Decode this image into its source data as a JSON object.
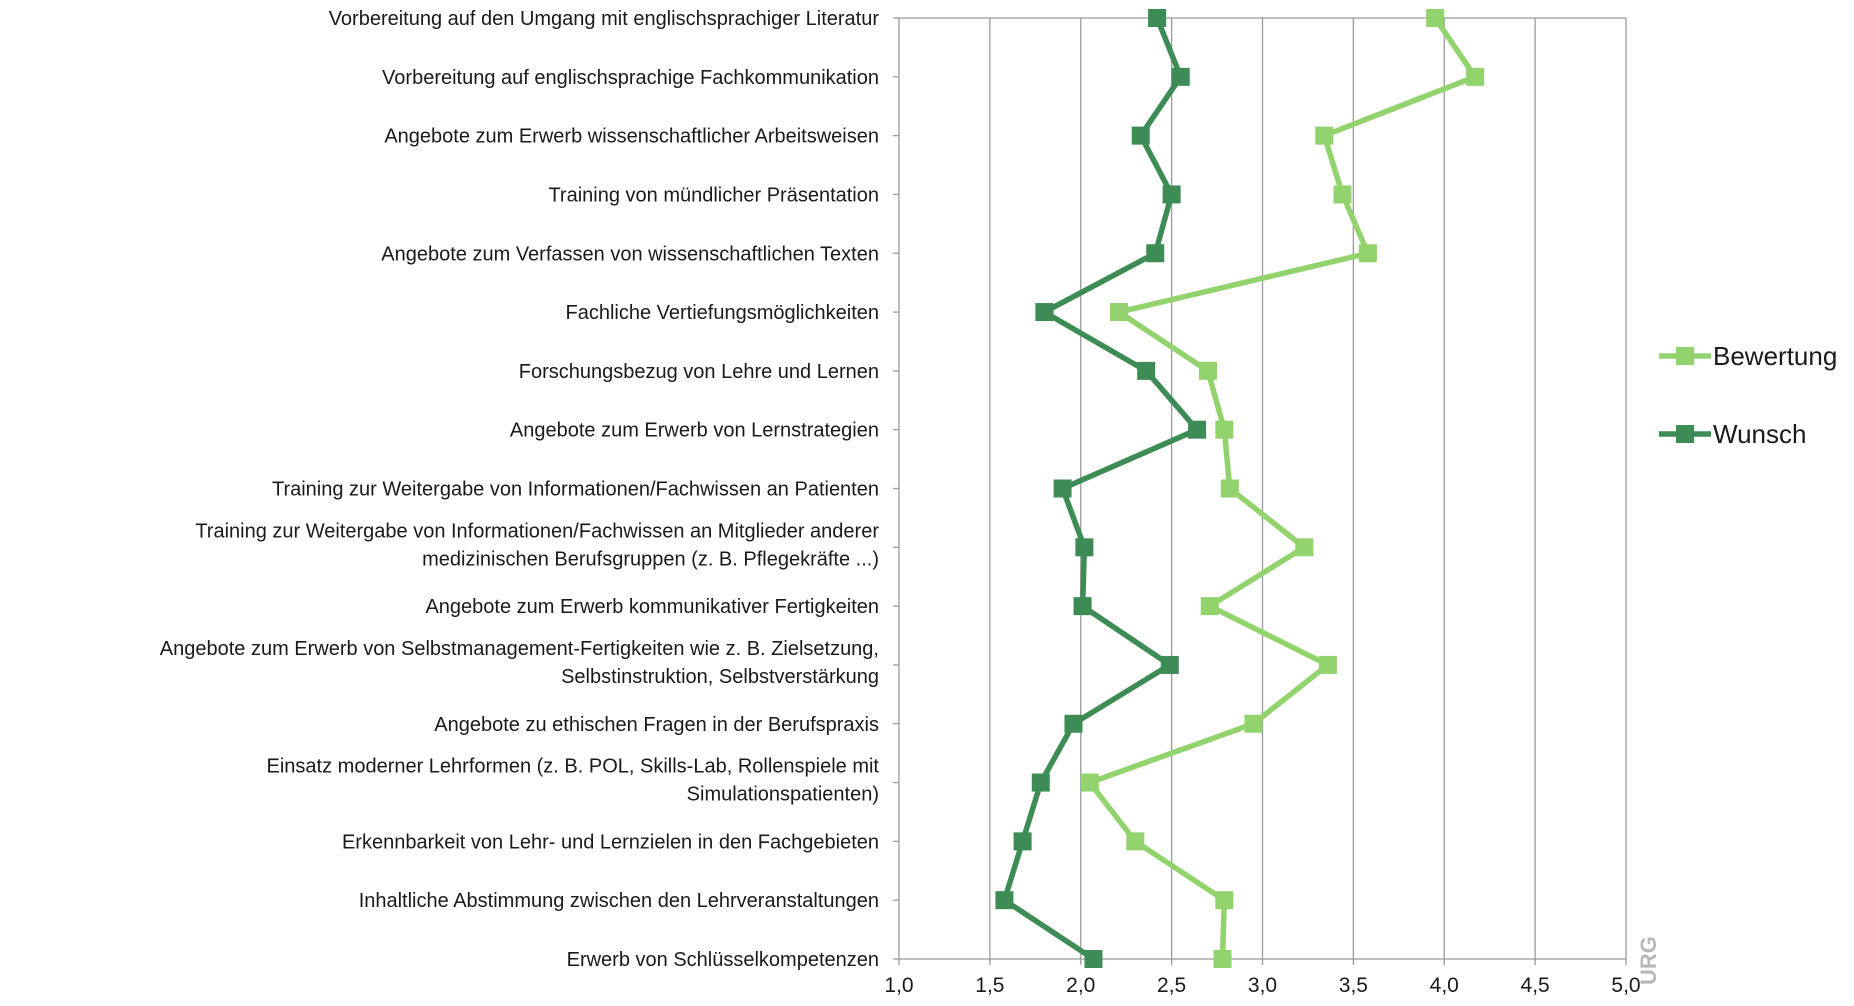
{
  "chart_data": {
    "type": "line",
    "orientation": "horizontal",
    "categories": [
      [
        "Vorbereitung auf den Umgang mit englischsprachiger Literatur"
      ],
      [
        "Vorbereitung auf englischsprachige Fachkommunikation"
      ],
      [
        "Angebote zum Erwerb wissenschaftlicher Arbeitsweisen"
      ],
      [
        "Training von mündlicher Präsentation"
      ],
      [
        "Angebote zum Verfassen von wissenschaftlichen Texten"
      ],
      [
        "Fachliche Vertiefungsmöglichkeiten"
      ],
      [
        "Forschungsbezug von Lehre und Lernen"
      ],
      [
        "Angebote zum Erwerb von Lernstrategien"
      ],
      [
        "Training zur Weitergabe von Informationen/Fachwissen an Patienten"
      ],
      [
        "Training zur Weitergabe von Informationen/Fachwissen an Mitglieder anderer",
        "medizinischen Berufsgruppen (z. B. Pflegekräfte ...)"
      ],
      [
        "Angebote zum Erwerb kommunikativer Fertigkeiten"
      ],
      [
        "Angebote zum Erwerb von Selbstmanagement-Fertigkeiten wie z. B. Zielsetzung,",
        "Selbstinstruktion, Selbstverstärkung"
      ],
      [
        "Angebote zu ethischen Fragen in der Berufspraxis"
      ],
      [
        "Einsatz moderner Lehrformen (z. B. POL, Skills-Lab, Rollenspiele mit",
        "Simulationspatienten)"
      ],
      [
        "Erkennbarkeit von Lehr- und Lernzielen in den Fachgebieten"
      ],
      [
        "Inhaltliche Abstimmung zwischen den Lehrveranstaltungen"
      ],
      [
        "Erwerb von Schlüsselkompetenzen"
      ]
    ],
    "series": [
      {
        "name": "Bewertung",
        "color": "#92d36e",
        "values": [
          3.95,
          4.17,
          3.34,
          3.44,
          3.58,
          2.21,
          2.7,
          2.79,
          2.82,
          3.23,
          2.71,
          3.36,
          2.95,
          2.05,
          2.3,
          2.79,
          2.78
        ]
      },
      {
        "name": "Wunsch",
        "color": "#3d8c55",
        "values": [
          2.42,
          2.55,
          2.33,
          2.5,
          2.41,
          1.8,
          2.36,
          2.64,
          1.9,
          2.02,
          2.01,
          2.49,
          1.96,
          1.78,
          1.68,
          1.58,
          2.07
        ]
      }
    ],
    "xlim": [
      1.0,
      5.0
    ],
    "xticks": [
      "1,0",
      "1,5",
      "2,0",
      "2,5",
      "3,0",
      "3,5",
      "4,0",
      "4,5",
      "5,0"
    ],
    "grid": true,
    "legend_position": "right",
    "title": "",
    "xlabel": "",
    "ylabel": "",
    "gridline_color": "#9a9a9a"
  },
  "watermark_text": "URG"
}
